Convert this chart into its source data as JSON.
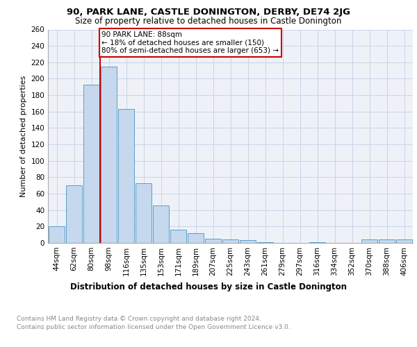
{
  "title1": "90, PARK LANE, CASTLE DONINGTON, DERBY, DE74 2JG",
  "title2": "Size of property relative to detached houses in Castle Donington",
  "xlabel": "Distribution of detached houses by size in Castle Donington",
  "ylabel": "Number of detached properties",
  "categories": [
    "44sqm",
    "62sqm",
    "80sqm",
    "98sqm",
    "116sqm",
    "135sqm",
    "153sqm",
    "171sqm",
    "189sqm",
    "207sqm",
    "225sqm",
    "243sqm",
    "261sqm",
    "279sqm",
    "297sqm",
    "316sqm",
    "334sqm",
    "352sqm",
    "370sqm",
    "388sqm",
    "406sqm"
  ],
  "values": [
    20,
    70,
    193,
    215,
    163,
    73,
    46,
    16,
    12,
    5,
    4,
    3,
    1,
    0,
    0,
    1,
    0,
    0,
    4,
    4,
    4
  ],
  "bar_color": "#c5d8ed",
  "bar_edge_color": "#5a9ec8",
  "bar_edge_width": 0.7,
  "vline_color": "#cc0000",
  "vline_pos": 2.5,
  "annotation_box_text": "90 PARK LANE: 88sqm\n← 18% of detached houses are smaller (150)\n80% of semi-detached houses are larger (653) →",
  "annotation_box_color": "#cc0000",
  "ylim": [
    0,
    260
  ],
  "yticks": [
    0,
    20,
    40,
    60,
    80,
    100,
    120,
    140,
    160,
    180,
    200,
    220,
    240,
    260
  ],
  "grid_color": "#c8d4e8",
  "background_color": "#eef2f8",
  "footnote": "Contains HM Land Registry data © Crown copyright and database right 2024.\nContains public sector information licensed under the Open Government Licence v3.0.",
  "title1_fontsize": 9.5,
  "title2_fontsize": 8.5,
  "xlabel_fontsize": 8.5,
  "ylabel_fontsize": 8,
  "tick_fontsize": 7.5,
  "annotation_fontsize": 7.5,
  "footnote_fontsize": 6.5
}
